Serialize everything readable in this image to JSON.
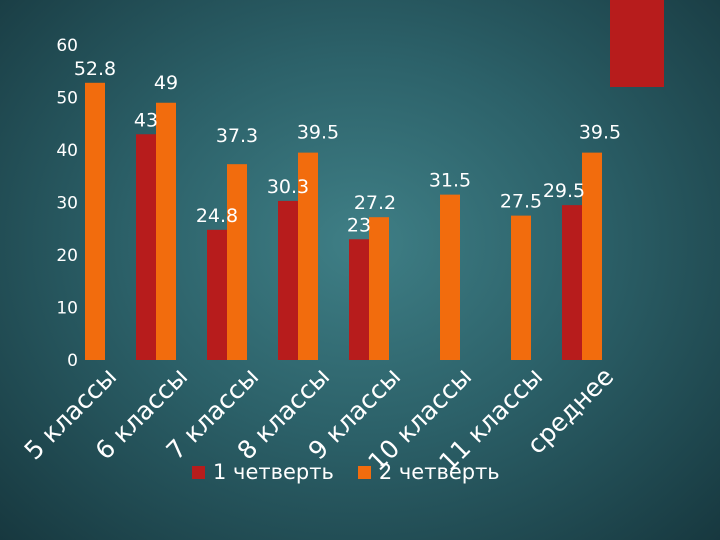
{
  "chart_data": {
    "type": "bar",
    "title": "",
    "xlabel": "",
    "ylabel": "",
    "ylim": [
      0,
      60
    ],
    "yticks": [
      0,
      10,
      20,
      30,
      40,
      50,
      60
    ],
    "categories": [
      "5 классы",
      "6 классы",
      "7 классы",
      "8 классы",
      "9 классы",
      "10 классы",
      "11 классы",
      "среднее"
    ],
    "series": [
      {
        "name": "1 четверть",
        "color": "#b71c1c",
        "values": [
          null,
          43,
          24.8,
          30.3,
          23,
          null,
          null,
          29.5
        ]
      },
      {
        "name": "2 четверть",
        "color": "#f26c0d",
        "values": [
          52.8,
          49,
          37.3,
          39.5,
          27.2,
          31.5,
          27.5,
          39.5
        ]
      }
    ],
    "legend_position": "bottom"
  },
  "decor": {
    "corner_block_color": "#b71c1c"
  }
}
